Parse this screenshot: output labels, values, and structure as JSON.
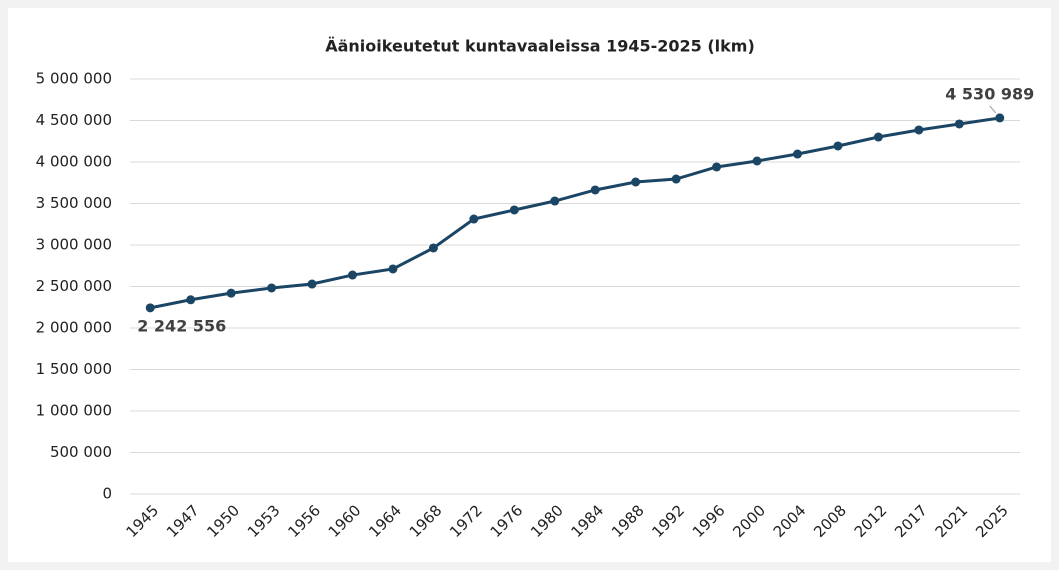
{
  "chart_data": {
    "type": "line",
    "title": "Äänioikeutetut kuntavaaleissa 1945-2025 (lkm)",
    "categories": [
      "1945",
      "1947",
      "1950",
      "1953",
      "1956",
      "1960",
      "1964",
      "1968",
      "1972",
      "1976",
      "1980",
      "1984",
      "1988",
      "1992",
      "1996",
      "2000",
      "2004",
      "2008",
      "2012",
      "2017",
      "2021",
      "2025"
    ],
    "series": [
      {
        "name": "Äänioikeutetut",
        "color": "#1b4565",
        "values": [
          2242556,
          2340000,
          2420000,
          2482000,
          2530000,
          2638000,
          2711000,
          2964000,
          3313000,
          3422000,
          3530000,
          3663000,
          3759000,
          3795000,
          3940000,
          4012000,
          4096000,
          4193000,
          4301000,
          4386000,
          4458000,
          4530989
        ],
        "value_labels": [
          "2 242 556",
          null,
          null,
          null,
          null,
          null,
          null,
          null,
          null,
          null,
          null,
          null,
          null,
          null,
          null,
          null,
          null,
          null,
          null,
          null,
          null,
          "4 530 989"
        ]
      }
    ],
    "ylim": [
      0,
      5000000
    ],
    "yticks": [
      0,
      {
        "value": 500000,
        "label": "500 000"
      },
      {
        "value": 1000000,
        "label": "1 000 000"
      },
      {
        "value": 1500000,
        "label": "1 500 000"
      },
      {
        "value": 2000000,
        "label": "2 000 000"
      },
      {
        "value": 2500000,
        "label": "2 500 000"
      },
      {
        "value": 3000000,
        "label": "3 000 000"
      },
      {
        "value": 3500000,
        "label": "3 500 000"
      },
      {
        "value": 4000000,
        "label": "4 000 000"
      },
      {
        "value": 4500000,
        "label": "4 500 000"
      },
      {
        "value": 5000000,
        "label": "5 000 000"
      }
    ],
    "grid": true
  }
}
